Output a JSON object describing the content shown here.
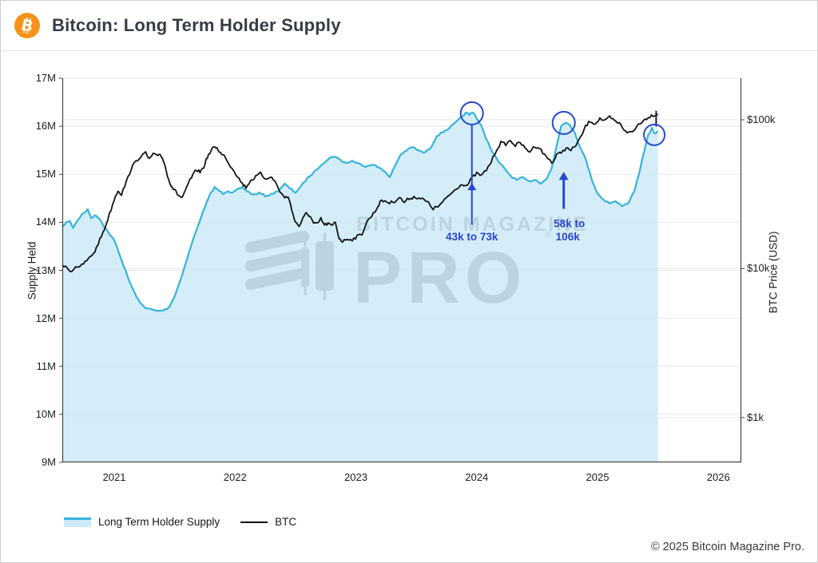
{
  "header": {
    "title": "Bitcoin: Long Term Holder Supply"
  },
  "page": {
    "footer": "© 2025 Bitcoin Magazine Pro."
  },
  "legend": {
    "items": [
      {
        "label": "Long Term Holder Supply",
        "swatch": "area"
      },
      {
        "label": "BTC",
        "swatch": "line"
      }
    ]
  },
  "watermark": {
    "brand": "BITCOIN MAGAZINE",
    "reg_mark": "®",
    "product": "PRO"
  },
  "chart_data": {
    "type": "line",
    "title": "Bitcoin: Long Term Holder Supply",
    "grid": true,
    "legend_position": "bottom-left",
    "x_axis": {
      "range": [
        2020.57,
        2026.19
      ],
      "tick_values": [
        2021,
        2022,
        2023,
        2024,
        2025,
        2026
      ],
      "tick_labels": [
        "2021",
        "2022",
        "2023",
        "2024",
        "2025",
        "2026"
      ]
    },
    "left_axis": {
      "label": "Supply Held",
      "range": [
        9,
        17
      ],
      "unit": "million BTC",
      "tick_values": [
        17,
        16,
        15,
        14,
        13,
        12,
        11,
        10,
        9
      ],
      "tick_labels": [
        "17M",
        "16M",
        "15M",
        "14M",
        "13M",
        "12M",
        "11M",
        "10M",
        "9M"
      ],
      "grid_values": [
        17,
        16,
        15,
        14,
        13,
        12,
        11,
        10
      ]
    },
    "right_axis": {
      "label": "BTC Price (USD)",
      "scale": "log",
      "range": [
        500,
        190000
      ],
      "tick_values": [
        100000,
        10000,
        1000
      ],
      "tick_labels": [
        "$100k",
        "$10k",
        "$1k"
      ],
      "grid_values": [
        100000,
        10000,
        1000
      ]
    },
    "colors": {
      "lth_line": "#35b4dc",
      "lth_fill": "#cdeaf8",
      "btc_line": "#131313",
      "grid": "#e7e7e7",
      "spine": "#454545",
      "annotation": "#2847cf",
      "watermark": "#9fb3bf",
      "bitcoin_orange": "#f7931a"
    },
    "series": [
      {
        "name": "Long Term Holder Supply",
        "axis": "left",
        "unit": "M",
        "points": [
          [
            2020.57,
            13.9
          ],
          [
            2020.6,
            13.99
          ],
          [
            2020.63,
            14.03
          ],
          [
            2020.66,
            13.89
          ],
          [
            2020.7,
            14.06
          ],
          [
            2020.74,
            14.18
          ],
          [
            2020.78,
            14.26
          ],
          [
            2020.81,
            14.1
          ],
          [
            2020.85,
            14.14
          ],
          [
            2020.88,
            14.07
          ],
          [
            2020.92,
            13.9
          ],
          [
            2020.96,
            13.76
          ],
          [
            2021.0,
            13.62
          ],
          [
            2021.04,
            13.36
          ],
          [
            2021.08,
            13.08
          ],
          [
            2021.12,
            12.8
          ],
          [
            2021.17,
            12.52
          ],
          [
            2021.21,
            12.33
          ],
          [
            2021.26,
            12.22
          ],
          [
            2021.31,
            12.18
          ],
          [
            2021.36,
            12.15
          ],
          [
            2021.41,
            12.17
          ],
          [
            2021.45,
            12.22
          ],
          [
            2021.5,
            12.46
          ],
          [
            2021.55,
            12.82
          ],
          [
            2021.6,
            13.22
          ],
          [
            2021.65,
            13.62
          ],
          [
            2021.7,
            13.98
          ],
          [
            2021.75,
            14.32
          ],
          [
            2021.79,
            14.56
          ],
          [
            2021.83,
            14.73
          ],
          [
            2021.86,
            14.67
          ],
          [
            2021.9,
            14.6
          ],
          [
            2021.94,
            14.66
          ],
          [
            2021.98,
            14.61
          ],
          [
            2022.02,
            14.68
          ],
          [
            2022.06,
            14.73
          ],
          [
            2022.1,
            14.65
          ],
          [
            2022.15,
            14.57
          ],
          [
            2022.2,
            14.61
          ],
          [
            2022.25,
            14.55
          ],
          [
            2022.3,
            14.58
          ],
          [
            2022.36,
            14.66
          ],
          [
            2022.41,
            14.8
          ],
          [
            2022.45,
            14.71
          ],
          [
            2022.5,
            14.62
          ],
          [
            2022.55,
            14.76
          ],
          [
            2022.6,
            14.92
          ],
          [
            2022.66,
            15.06
          ],
          [
            2022.72,
            15.22
          ],
          [
            2022.78,
            15.33
          ],
          [
            2022.82,
            15.38
          ],
          [
            2022.87,
            15.3
          ],
          [
            2022.92,
            15.23
          ],
          [
            2022.97,
            15.28
          ],
          [
            2023.02,
            15.22
          ],
          [
            2023.08,
            15.17
          ],
          [
            2023.14,
            15.21
          ],
          [
            2023.2,
            15.12
          ],
          [
            2023.25,
            15.04
          ],
          [
            2023.28,
            14.93
          ],
          [
            2023.32,
            15.16
          ],
          [
            2023.37,
            15.41
          ],
          [
            2023.42,
            15.5
          ],
          [
            2023.47,
            15.57
          ],
          [
            2023.52,
            15.49
          ],
          [
            2023.57,
            15.45
          ],
          [
            2023.62,
            15.56
          ],
          [
            2023.67,
            15.8
          ],
          [
            2023.72,
            15.88
          ],
          [
            2023.77,
            15.96
          ],
          [
            2023.82,
            16.06
          ],
          [
            2023.87,
            16.18
          ],
          [
            2023.91,
            16.28
          ],
          [
            2023.94,
            16.24
          ],
          [
            2023.97,
            16.3
          ],
          [
            2024.0,
            16.17
          ],
          [
            2024.04,
            15.99
          ],
          [
            2024.08,
            15.74
          ],
          [
            2024.13,
            15.46
          ],
          [
            2024.18,
            15.26
          ],
          [
            2024.23,
            15.12
          ],
          [
            2024.28,
            14.97
          ],
          [
            2024.33,
            14.88
          ],
          [
            2024.38,
            14.93
          ],
          [
            2024.43,
            14.85
          ],
          [
            2024.48,
            14.89
          ],
          [
            2024.53,
            14.82
          ],
          [
            2024.58,
            14.91
          ],
          [
            2024.62,
            15.12
          ],
          [
            2024.66,
            15.58
          ],
          [
            2024.7,
            16.02
          ],
          [
            2024.73,
            16.08
          ],
          [
            2024.77,
            16.04
          ],
          [
            2024.81,
            15.86
          ],
          [
            2024.85,
            15.6
          ],
          [
            2024.89,
            15.4
          ],
          [
            2024.92,
            15.16
          ],
          [
            2024.96,
            14.84
          ],
          [
            2025.0,
            14.6
          ],
          [
            2025.05,
            14.47
          ],
          [
            2025.1,
            14.4
          ],
          [
            2025.15,
            14.43
          ],
          [
            2025.2,
            14.35
          ],
          [
            2025.25,
            14.39
          ],
          [
            2025.3,
            14.62
          ],
          [
            2025.34,
            14.96
          ],
          [
            2025.38,
            15.42
          ],
          [
            2025.42,
            15.82
          ],
          [
            2025.45,
            15.96
          ],
          [
            2025.47,
            15.84
          ],
          [
            2025.5,
            15.9
          ]
        ]
      },
      {
        "name": "BTC",
        "axis": "right",
        "unit": "USD",
        "points": [
          [
            2020.57,
            10600
          ],
          [
            2020.61,
            10050
          ],
          [
            2020.65,
            9600
          ],
          [
            2020.68,
            10400
          ],
          [
            2020.72,
            10250
          ],
          [
            2020.76,
            11100
          ],
          [
            2020.8,
            11900
          ],
          [
            2020.84,
            13100
          ],
          [
            2020.88,
            15600
          ],
          [
            2020.92,
            18600
          ],
          [
            2020.96,
            23200
          ],
          [
            2021.0,
            29200
          ],
          [
            2021.03,
            33600
          ],
          [
            2021.06,
            31600
          ],
          [
            2021.1,
            38200
          ],
          [
            2021.14,
            47000
          ],
          [
            2021.18,
            52500
          ],
          [
            2021.22,
            57200
          ],
          [
            2021.26,
            59600
          ],
          [
            2021.29,
            54200
          ],
          [
            2021.32,
            58600
          ],
          [
            2021.35,
            57200
          ],
          [
            2021.38,
            59200
          ],
          [
            2021.41,
            52500
          ],
          [
            2021.44,
            42500
          ],
          [
            2021.47,
            36200
          ],
          [
            2021.5,
            33600
          ],
          [
            2021.53,
            31200
          ],
          [
            2021.56,
            29900
          ],
          [
            2021.59,
            33200
          ],
          [
            2021.62,
            38600
          ],
          [
            2021.65,
            42200
          ],
          [
            2021.68,
            46200
          ],
          [
            2021.71,
            44600
          ],
          [
            2021.74,
            48200
          ],
          [
            2021.77,
            56200
          ],
          [
            2021.8,
            61200
          ],
          [
            2021.83,
            66600
          ],
          [
            2021.86,
            63200
          ],
          [
            2021.89,
            58200
          ],
          [
            2021.92,
            56600
          ],
          [
            2021.95,
            50200
          ],
          [
            2021.98,
            47200
          ],
          [
            2022.02,
            41600
          ],
          [
            2022.06,
            37200
          ],
          [
            2022.09,
            35200
          ],
          [
            2022.13,
            39200
          ],
          [
            2022.17,
            41200
          ],
          [
            2022.21,
            43600
          ],
          [
            2022.25,
            40200
          ],
          [
            2022.29,
            41600
          ],
          [
            2022.33,
            38600
          ],
          [
            2022.37,
            33200
          ],
          [
            2022.41,
            29900
          ],
          [
            2022.44,
            30600
          ],
          [
            2022.47,
            24600
          ],
          [
            2022.5,
            20600
          ],
          [
            2022.53,
            19300
          ],
          [
            2022.56,
            21600
          ],
          [
            2022.59,
            23600
          ],
          [
            2022.62,
            22600
          ],
          [
            2022.65,
            20100
          ],
          [
            2022.68,
            19900
          ],
          [
            2022.71,
            21600
          ],
          [
            2022.74,
            19600
          ],
          [
            2022.77,
            20100
          ],
          [
            2022.8,
            19300
          ],
          [
            2022.83,
            20600
          ],
          [
            2022.86,
            16100
          ],
          [
            2022.89,
            15200
          ],
          [
            2022.93,
            15900
          ],
          [
            2022.97,
            15700
          ],
          [
            2023.01,
            16400
          ],
          [
            2023.05,
            17100
          ],
          [
            2023.09,
            20600
          ],
          [
            2023.13,
            22600
          ],
          [
            2023.17,
            25100
          ],
          [
            2023.2,
            28100
          ],
          [
            2023.24,
            28600
          ],
          [
            2023.28,
            27600
          ],
          [
            2023.32,
            28400
          ],
          [
            2023.36,
            30100
          ],
          [
            2023.4,
            27900
          ],
          [
            2023.44,
            29600
          ],
          [
            2023.48,
            30300
          ],
          [
            2023.52,
            29900
          ],
          [
            2023.56,
            29100
          ],
          [
            2023.6,
            27600
          ],
          [
            2023.64,
            25300
          ],
          [
            2023.68,
            26100
          ],
          [
            2023.72,
            27900
          ],
          [
            2023.76,
            30600
          ],
          [
            2023.8,
            32600
          ],
          [
            2023.84,
            35100
          ],
          [
            2023.88,
            37100
          ],
          [
            2023.92,
            36100
          ],
          [
            2023.96,
            40600
          ],
          [
            2024.0,
            43600
          ],
          [
            2024.04,
            42100
          ],
          [
            2024.08,
            46100
          ],
          [
            2024.12,
            52100
          ],
          [
            2024.16,
            62100
          ],
          [
            2024.2,
            70100
          ],
          [
            2024.24,
            68600
          ],
          [
            2024.28,
            72600
          ],
          [
            2024.32,
            67100
          ],
          [
            2024.36,
            70600
          ],
          [
            2024.4,
            64100
          ],
          [
            2024.44,
            61100
          ],
          [
            2024.48,
            66600
          ],
          [
            2024.52,
            64600
          ],
          [
            2024.56,
            58100
          ],
          [
            2024.6,
            54100
          ],
          [
            2024.63,
            51600
          ],
          [
            2024.66,
            57600
          ],
          [
            2024.7,
            60600
          ],
          [
            2024.74,
            64600
          ],
          [
            2024.78,
            62100
          ],
          [
            2024.82,
            67600
          ],
          [
            2024.86,
            75600
          ],
          [
            2024.9,
            90100
          ],
          [
            2024.94,
            98100
          ],
          [
            2024.98,
            94100
          ],
          [
            2025.02,
            102000
          ],
          [
            2025.06,
            97600
          ],
          [
            2025.1,
            104000
          ],
          [
            2025.14,
            98100
          ],
          [
            2025.18,
            94600
          ],
          [
            2025.22,
            86100
          ],
          [
            2025.26,
            81600
          ],
          [
            2025.3,
            84100
          ],
          [
            2025.34,
            94100
          ],
          [
            2025.38,
            98600
          ],
          [
            2025.42,
            104500
          ],
          [
            2025.46,
            107500
          ],
          [
            2025.5,
            109000
          ]
        ]
      }
    ],
    "annotations": [
      {
        "name": "lth-peak-dec-2023",
        "circle": {
          "year": 2023.96,
          "supply": 16.27,
          "r": 14
        },
        "connector": {
          "year": 2023.96,
          "from_supply": 16.03,
          "to_supply": 13.95
        },
        "arrow_head": {
          "year": 2023.96,
          "tip_supply": 14.82
        },
        "labels": [
          {
            "text": "43k to 73k",
            "year": 2023.96,
            "supply": 13.7,
            "dx": 0
          }
        ]
      },
      {
        "name": "lth-peak-sep-2024",
        "circle": {
          "year": 2024.72,
          "supply": 16.07,
          "r": 14
        },
        "arrow": {
          "year": 2024.72,
          "tip_supply": 15.05,
          "tail_supply": 14.28
        },
        "labels": [
          {
            "text": "58k to",
            "year": 2024.72,
            "supply": 13.97,
            "dx": 7
          },
          {
            "text": "106k",
            "year": 2024.72,
            "supply": 13.7,
            "dx": 5
          }
        ]
      },
      {
        "name": "lth-current-mid-2025",
        "circle": {
          "year": 2025.47,
          "supply": 15.82,
          "r": 13
        },
        "price_tick": {
          "year": 2025.485,
          "from_price": 115000,
          "to_price": 90000
        }
      }
    ]
  }
}
